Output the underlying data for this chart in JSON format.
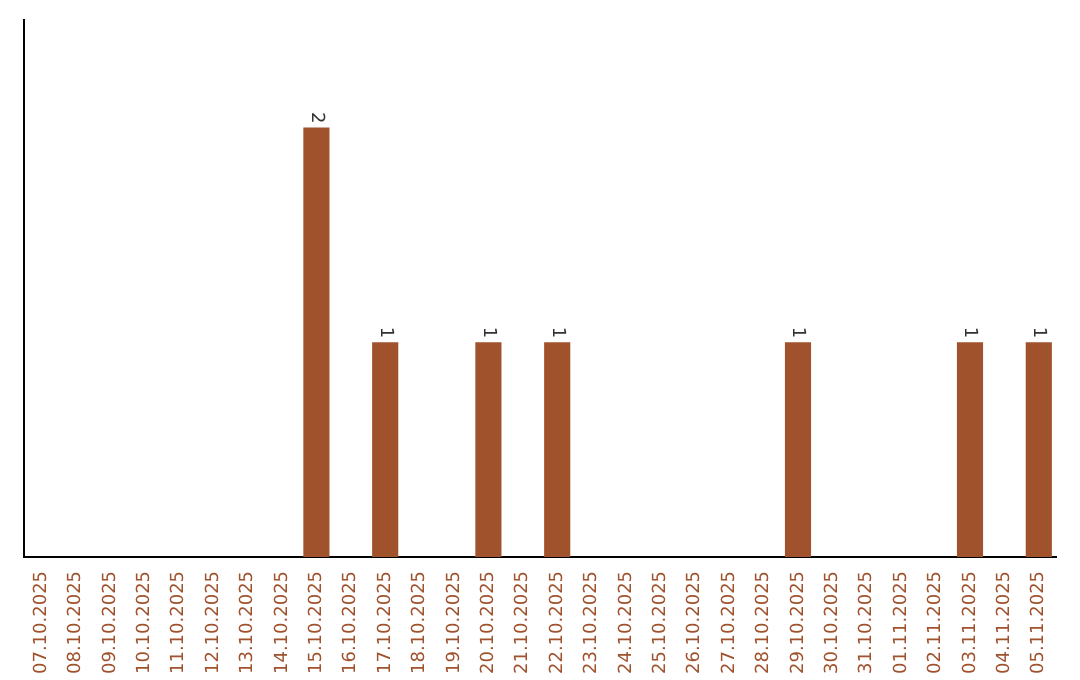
{
  "chart_data": {
    "type": "bar",
    "categories": [
      "07.10.2025",
      "08.10.2025",
      "09.10.2025",
      "10.10.2025",
      "11.10.2025",
      "12.10.2025",
      "13.10.2025",
      "14.10.2025",
      "15.10.2025",
      "16.10.2025",
      "17.10.2025",
      "18.10.2025",
      "19.10.2025",
      "20.10.2025",
      "21.10.2025",
      "22.10.2025",
      "23.10.2025",
      "24.10.2025",
      "25.10.2025",
      "26.10.2025",
      "27.10.2025",
      "28.10.2025",
      "29.10.2025",
      "30.10.2025",
      "31.10.2025",
      "01.11.2025",
      "02.11.2025",
      "03.11.2025",
      "04.11.2025",
      "05.11.2025"
    ],
    "values": [
      0,
      0,
      0,
      0,
      0,
      0,
      0,
      0,
      2,
      0,
      1,
      0,
      0,
      1,
      0,
      1,
      0,
      0,
      0,
      0,
      0,
      0,
      1,
      0,
      0,
      0,
      0,
      1,
      0,
      1
    ],
    "value_labels": [
      null,
      null,
      null,
      null,
      null,
      null,
      null,
      null,
      "2",
      null,
      "1",
      null,
      null,
      "1",
      null,
      "1",
      null,
      null,
      null,
      null,
      null,
      null,
      "1",
      null,
      null,
      null,
      null,
      "1",
      null,
      "1"
    ],
    "color": "#a0522d",
    "tick_labels": "x",
    "grid": false,
    "legend": false
  }
}
